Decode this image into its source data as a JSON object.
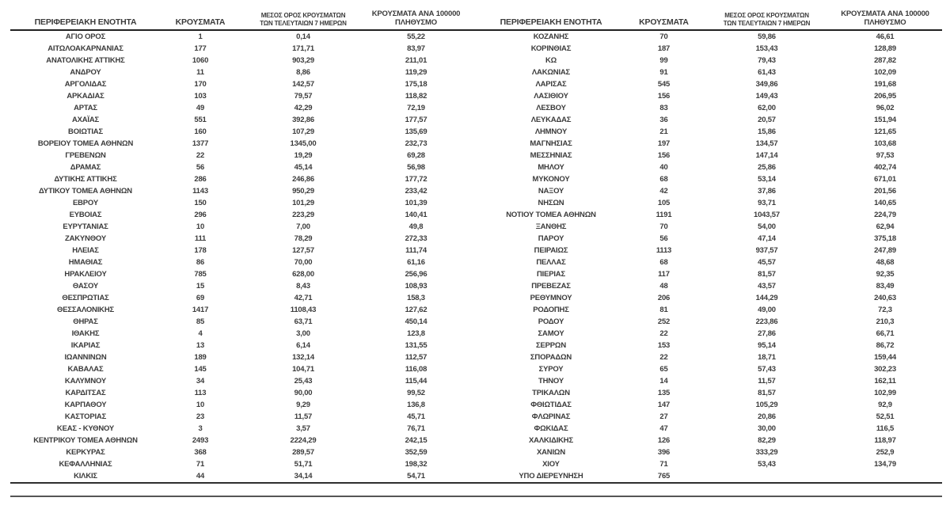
{
  "table": {
    "headers": {
      "region": "ΠΕΡΙΦΕΡΕΙΑΚΗ ΕΝΟΤΗΤΑ",
      "cases": "ΚΡΟΥΣΜΑΤΑ",
      "avg7_line1": "ΜΕΣΟΣ ΟΡΟΣ ΚΡΟΥΣΜΑΤΩΝ",
      "avg7_line2": "ΤΩΝ ΤΕΛΕΥΤΑΙΩΝ 7 ΗΜΕΡΩΝ",
      "per100k_line1": "ΚΡΟΥΣΜΑΤΑ ΑΝΑ 100000",
      "per100k_line2": "ΠΛΗΘΥΣΜΟ"
    },
    "left_rows": [
      [
        "ΑΓΙΟ ΟΡΟΣ",
        "1",
        "0,14",
        "55,22"
      ],
      [
        "ΑΙΤΩΛΟΑΚΑΡΝΑΝΙΑΣ",
        "177",
        "171,71",
        "83,97"
      ],
      [
        "ΑΝΑΤΟΛΙΚΗΣ ΑΤΤΙΚΗΣ",
        "1060",
        "903,29",
        "211,01"
      ],
      [
        "ΑΝΔΡΟΥ",
        "11",
        "8,86",
        "119,29"
      ],
      [
        "ΑΡΓΟΛΙΔΑΣ",
        "170",
        "142,57",
        "175,18"
      ],
      [
        "ΑΡΚΑΔΙΑΣ",
        "103",
        "79,57",
        "118,82"
      ],
      [
        "ΑΡΤΑΣ",
        "49",
        "42,29",
        "72,19"
      ],
      [
        "ΑΧΑΪΑΣ",
        "551",
        "392,86",
        "177,57"
      ],
      [
        "ΒΟΙΩΤΙΑΣ",
        "160",
        "107,29",
        "135,69"
      ],
      [
        "ΒΟΡΕΙΟΥ ΤΟΜΕΑ ΑΘΗΝΩΝ",
        "1377",
        "1345,00",
        "232,73"
      ],
      [
        "ΓΡΕΒΕΝΩΝ",
        "22",
        "19,29",
        "69,28"
      ],
      [
        "ΔΡΑΜΑΣ",
        "56",
        "45,14",
        "56,98"
      ],
      [
        "ΔΥΤΙΚΗΣ ΑΤΤΙΚΗΣ",
        "286",
        "246,86",
        "177,72"
      ],
      [
        "ΔΥΤΙΚΟΥ ΤΟΜΕΑ ΑΘΗΝΩΝ",
        "1143",
        "950,29",
        "233,42"
      ],
      [
        "ΕΒΡΟΥ",
        "150",
        "101,29",
        "101,39"
      ],
      [
        "ΕΥΒΟΙΑΣ",
        "296",
        "223,29",
        "140,41"
      ],
      [
        "ΕΥΡΥΤΑΝΙΑΣ",
        "10",
        "7,00",
        "49,8"
      ],
      [
        "ΖΑΚΥΝΘΟΥ",
        "111",
        "78,29",
        "272,33"
      ],
      [
        "ΗΛΕΙΑΣ",
        "178",
        "127,57",
        "111,74"
      ],
      [
        "ΗΜΑΘΙΑΣ",
        "86",
        "70,00",
        "61,16"
      ],
      [
        "ΗΡΑΚΛΕΙΟΥ",
        "785",
        "628,00",
        "256,96"
      ],
      [
        "ΘΑΣΟΥ",
        "15",
        "8,43",
        "108,93"
      ],
      [
        "ΘΕΣΠΡΩΤΙΑΣ",
        "69",
        "42,71",
        "158,3"
      ],
      [
        "ΘΕΣΣΑΛΟΝΙΚΗΣ",
        "1417",
        "1108,43",
        "127,62"
      ],
      [
        "ΘΗΡΑΣ",
        "85",
        "63,71",
        "450,14"
      ],
      [
        "ΙΘΑΚΗΣ",
        "4",
        "3,00",
        "123,8"
      ],
      [
        "ΙΚΑΡΙΑΣ",
        "13",
        "6,14",
        "131,55"
      ],
      [
        "ΙΩΑΝΝΙΝΩΝ",
        "189",
        "132,14",
        "112,57"
      ],
      [
        "ΚΑΒΑΛΑΣ",
        "145",
        "104,71",
        "116,08"
      ],
      [
        "ΚΑΛΥΜΝΟΥ",
        "34",
        "25,43",
        "115,44"
      ],
      [
        "ΚΑΡΔΙΤΣΑΣ",
        "113",
        "90,00",
        "99,52"
      ],
      [
        "ΚΑΡΠΑΘΟΥ",
        "10",
        "9,29",
        "136,8"
      ],
      [
        "ΚΑΣΤΟΡΙΑΣ",
        "23",
        "11,57",
        "45,71"
      ],
      [
        "ΚΕΑΣ - ΚΥΘΝΟΥ",
        "3",
        "3,57",
        "76,71"
      ],
      [
        "ΚΕΝΤΡΙΚΟΥ ΤΟΜΕΑ ΑΘΗΝΩΝ",
        "2493",
        "2224,29",
        "242,15"
      ],
      [
        "ΚΕΡΚΥΡΑΣ",
        "368",
        "289,57",
        "352,59"
      ],
      [
        "ΚΕΦΑΛΛΗΝΙΑΣ",
        "71",
        "51,71",
        "198,32"
      ],
      [
        "ΚΙΛΚΙΣ",
        "44",
        "34,14",
        "54,71"
      ]
    ],
    "right_rows": [
      [
        "ΚΟΖΑΝΗΣ",
        "70",
        "59,86",
        "46,61"
      ],
      [
        "ΚΟΡΙΝΘΙΑΣ",
        "187",
        "153,43",
        "128,89"
      ],
      [
        "ΚΩ",
        "99",
        "79,43",
        "287,82"
      ],
      [
        "ΛΑΚΩΝΙΑΣ",
        "91",
        "61,43",
        "102,09"
      ],
      [
        "ΛΑΡΙΣΑΣ",
        "545",
        "349,86",
        "191,68"
      ],
      [
        "ΛΑΣΙΘΙΟΥ",
        "156",
        "149,43",
        "206,95"
      ],
      [
        "ΛΕΣΒΟΥ",
        "83",
        "62,00",
        "96,02"
      ],
      [
        "ΛΕΥΚΑΔΑΣ",
        "36",
        "20,57",
        "151,94"
      ],
      [
        "ΛΗΜΝΟΥ",
        "21",
        "15,86",
        "121,65"
      ],
      [
        "ΜΑΓΝΗΣΙΑΣ",
        "197",
        "134,57",
        "103,68"
      ],
      [
        "ΜΕΣΣΗΝΙΑΣ",
        "156",
        "147,14",
        "97,53"
      ],
      [
        "ΜΗΛΟΥ",
        "40",
        "25,86",
        "402,74"
      ],
      [
        "ΜΥΚΟΝΟΥ",
        "68",
        "53,14",
        "671,01"
      ],
      [
        "ΝΑΞΟΥ",
        "42",
        "37,86",
        "201,56"
      ],
      [
        "ΝΗΣΩΝ",
        "105",
        "93,71",
        "140,65"
      ],
      [
        "ΝΟΤΙΟΥ ΤΟΜΕΑ ΑΘΗΝΩΝ",
        "1191",
        "1043,57",
        "224,79"
      ],
      [
        "ΞΑΝΘΗΣ",
        "70",
        "54,00",
        "62,94"
      ],
      [
        "ΠΑΡΟΥ",
        "56",
        "47,14",
        "375,18"
      ],
      [
        "ΠΕΙΡΑΙΩΣ",
        "1113",
        "937,57",
        "247,89"
      ],
      [
        "ΠΕΛΛΑΣ",
        "68",
        "45,57",
        "48,68"
      ],
      [
        "ΠΙΕΡΙΑΣ",
        "117",
        "81,57",
        "92,35"
      ],
      [
        "ΠΡΕΒΕΖΑΣ",
        "48",
        "43,57",
        "83,49"
      ],
      [
        "ΡΕΘΥΜΝΟΥ",
        "206",
        "144,29",
        "240,63"
      ],
      [
        "ΡΟΔΟΠΗΣ",
        "81",
        "49,00",
        "72,3"
      ],
      [
        "ΡΟΔΟΥ",
        "252",
        "223,86",
        "210,3"
      ],
      [
        "ΣΑΜΟΥ",
        "22",
        "27,86",
        "66,71"
      ],
      [
        "ΣΕΡΡΩΝ",
        "153",
        "95,14",
        "86,72"
      ],
      [
        "ΣΠΟΡΑΔΩΝ",
        "22",
        "18,71",
        "159,44"
      ],
      [
        "ΣΥΡΟΥ",
        "65",
        "57,43",
        "302,23"
      ],
      [
        "ΤΗΝΟΥ",
        "14",
        "11,57",
        "162,11"
      ],
      [
        "ΤΡΙΚΑΛΩΝ",
        "135",
        "81,57",
        "102,99"
      ],
      [
        "ΦΘΙΩΤΙΔΑΣ",
        "147",
        "105,29",
        "92,9"
      ],
      [
        "ΦΛΩΡΙΝΑΣ",
        "27",
        "20,86",
        "52,51"
      ],
      [
        "ΦΩΚΙΔΑΣ",
        "47",
        "30,00",
        "116,5"
      ],
      [
        "ΧΑΛΚΙΔΙΚΗΣ",
        "126",
        "82,29",
        "118,97"
      ],
      [
        "ΧΑΝΙΩΝ",
        "396",
        "333,29",
        "252,9"
      ],
      [
        "ΧΙΟΥ",
        "71",
        "53,43",
        "134,79"
      ],
      [
        "ΥΠΟ ΔΙΕΡΕΥΝΗΣΗ",
        "765",
        "",
        ""
      ]
    ]
  },
  "colors": {
    "text": "#3b3b3b",
    "header_rule": "#212121",
    "bottom_rule": "#2e2e2e",
    "closing_rule": "#555555"
  }
}
